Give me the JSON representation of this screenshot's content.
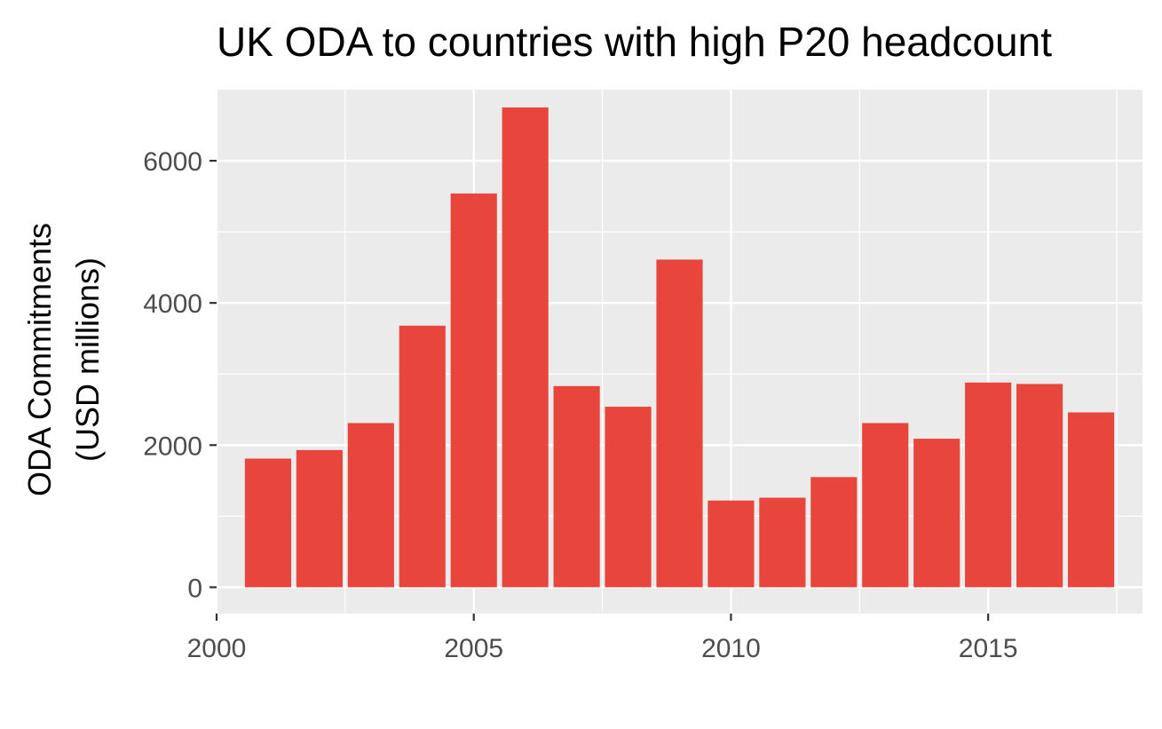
{
  "chart_data": {
    "type": "bar",
    "title": "UK ODA to countries with high P20 headcount",
    "xlabel": "",
    "ylabel_lines": [
      "ODA Commitments",
      "(USD millions)"
    ],
    "x": [
      2001,
      2002,
      2003,
      2004,
      2005,
      2006,
      2007,
      2008,
      2009,
      2010,
      2011,
      2012,
      2013,
      2014,
      2015,
      2016,
      2017
    ],
    "values": [
      1810,
      1930,
      2310,
      3680,
      5540,
      6750,
      2830,
      2540,
      4610,
      1220,
      1260,
      1550,
      2310,
      2090,
      2880,
      2860,
      2460
    ],
    "xlim": [
      2000,
      2018
    ],
    "ylim": [
      -370,
      7000
    ],
    "x_ticks": [
      2000,
      2005,
      2010,
      2015
    ],
    "y_ticks": [
      0,
      2000,
      4000,
      6000
    ],
    "bar_color": "#e8453c",
    "panel_background": "#ebebeb",
    "grid": true,
    "legend": "none"
  }
}
